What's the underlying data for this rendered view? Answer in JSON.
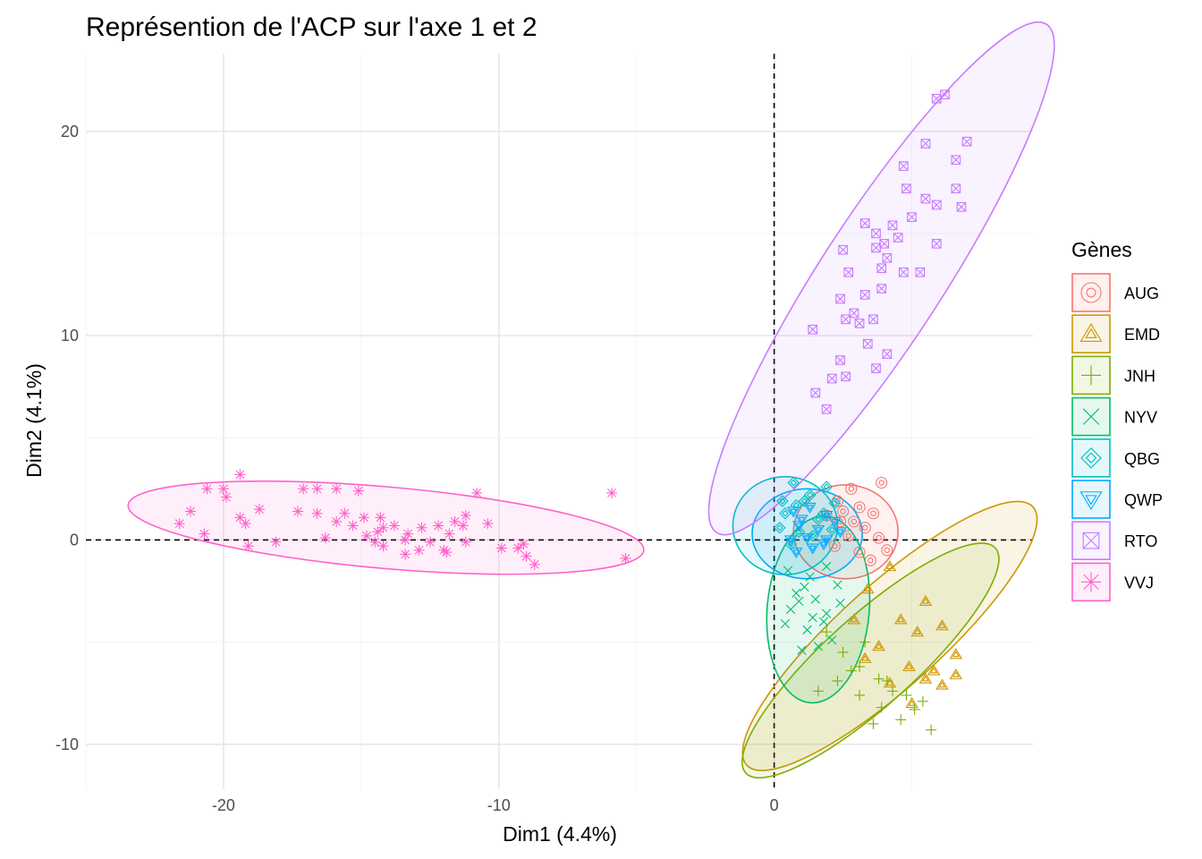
{
  "chart_data": {
    "type": "scatter",
    "title": "Représention de l'ACP sur l'axe 1 et 2",
    "xlabel": "Dim1 (4.4%)",
    "ylabel": "Dim2 (4.1%)",
    "xlim": [
      -25,
      9.4
    ],
    "ylim": [
      -12.2,
      23.8
    ],
    "x_ticks": [
      -20,
      -10,
      0
    ],
    "x_tick_labels": [
      "-20",
      "-10",
      "0"
    ],
    "y_ticks": [
      -10,
      0,
      10,
      20
    ],
    "y_tick_labels": [
      "-10",
      "0",
      "10",
      "20"
    ],
    "grid": true,
    "reference_lines": {
      "x": 0,
      "y": 0,
      "style": "dashed"
    },
    "legend": {
      "title": "Gènes",
      "placement": "right"
    },
    "series": [
      {
        "name": "AUG",
        "color": "#F8766D",
        "marker": "double-circle",
        "ellipse": {
          "cx": 2.6,
          "cy": 0.4,
          "rx": 1.9,
          "ry": 2.3,
          "angle": 0
        },
        "points": [
          [
            2.8,
            2.5
          ],
          [
            3.9,
            2.8
          ],
          [
            2.3,
            1.9
          ],
          [
            3.1,
            1.6
          ],
          [
            3.6,
            1.3
          ],
          [
            2.9,
            0.9
          ],
          [
            3.3,
            0.6
          ],
          [
            2.4,
            0.9
          ],
          [
            2.7,
            0.2
          ],
          [
            3.8,
            0.1
          ],
          [
            3.1,
            -0.6
          ],
          [
            2.2,
            -0.3
          ],
          [
            1.9,
            1.2
          ],
          [
            3.5,
            -1.0
          ],
          [
            2.5,
            1.4
          ],
          [
            4.1,
            -0.5
          ]
        ]
      },
      {
        "name": "EMD",
        "color": "#CD9600",
        "marker": "double-triangle",
        "ellipse": {
          "cx": 4.2,
          "cy": -4.7,
          "rx": 7.0,
          "ry": 2.5,
          "angle": -42
        },
        "points": [
          [
            4.2,
            -1.3
          ],
          [
            3.4,
            -2.4
          ],
          [
            5.5,
            -3.0
          ],
          [
            4.6,
            -3.9
          ],
          [
            5.2,
            -4.5
          ],
          [
            6.1,
            -4.2
          ],
          [
            6.6,
            -5.6
          ],
          [
            5.8,
            -6.4
          ],
          [
            3.8,
            -5.2
          ],
          [
            2.9,
            -3.9
          ],
          [
            4.9,
            -6.2
          ],
          [
            6.1,
            -7.1
          ],
          [
            5.0,
            -8.0
          ],
          [
            6.6,
            -6.6
          ],
          [
            3.3,
            -5.8
          ],
          [
            4.2,
            -7.0
          ],
          [
            5.5,
            -6.8
          ]
        ]
      },
      {
        "name": "JNH",
        "color": "#7CAE00",
        "marker": "plus",
        "ellipse": {
          "cx": 3.5,
          "cy": -5.9,
          "rx": 6.1,
          "ry": 2.2,
          "angle": -42
        },
        "points": [
          [
            1.9,
            -4.5
          ],
          [
            2.5,
            -5.5
          ],
          [
            3.1,
            -6.2
          ],
          [
            3.8,
            -6.8
          ],
          [
            4.3,
            -7.4
          ],
          [
            5.1,
            -8.3
          ],
          [
            5.7,
            -9.3
          ],
          [
            4.6,
            -8.8
          ],
          [
            3.6,
            -9.0
          ],
          [
            2.3,
            -6.9
          ],
          [
            1.6,
            -7.4
          ],
          [
            3.1,
            -7.6
          ],
          [
            4.1,
            -6.9
          ],
          [
            5.4,
            -7.9
          ],
          [
            3.3,
            -5.0
          ],
          [
            2.8,
            -6.4
          ],
          [
            4.8,
            -7.6
          ],
          [
            3.9,
            -8.2
          ]
        ]
      },
      {
        "name": "NYV",
        "color": "#00BE67",
        "marker": "cross",
        "ellipse": {
          "cx": 1.6,
          "cy": -3.4,
          "rx": 3.4,
          "ry": 2.5,
          "angle": -85
        },
        "points": [
          [
            0.5,
            -1.5
          ],
          [
            1.1,
            -2.3
          ],
          [
            1.5,
            -2.9
          ],
          [
            1.9,
            -3.6
          ],
          [
            1.2,
            -4.4
          ],
          [
            0.6,
            -3.4
          ],
          [
            1.6,
            -5.2
          ],
          [
            2.3,
            -2.2
          ],
          [
            0.9,
            -3.0
          ],
          [
            1.8,
            -4.0
          ],
          [
            1.3,
            -1.8
          ],
          [
            2.1,
            -4.9
          ],
          [
            0.8,
            -2.6
          ],
          [
            1.4,
            -3.8
          ],
          [
            0.4,
            -4.1
          ],
          [
            1.9,
            -1.3
          ],
          [
            1.0,
            -5.4
          ],
          [
            2.4,
            -3.1
          ]
        ]
      },
      {
        "name": "QBG",
        "color": "#00BFC4",
        "marker": "double-diamond",
        "ellipse": {
          "cx": 0.4,
          "cy": 0.7,
          "rx": 1.9,
          "ry": 2.4,
          "angle": 0
        },
        "points": [
          [
            0.7,
            2.8
          ],
          [
            1.1,
            1.9
          ],
          [
            0.4,
            1.3
          ],
          [
            1.6,
            1.0
          ],
          [
            0.9,
            0.4
          ],
          [
            1.4,
            0.2
          ],
          [
            0.2,
            0.6
          ],
          [
            0.6,
            -0.2
          ],
          [
            1.8,
            1.3
          ],
          [
            2.1,
            0.5
          ],
          [
            1.3,
            2.2
          ],
          [
            0.8,
            1.7
          ],
          [
            1.9,
            2.6
          ],
          [
            2.2,
            1.8
          ],
          [
            0.3,
            1.9
          ]
        ]
      },
      {
        "name": "QWP",
        "color": "#00A9FF",
        "marker": "double-triangle-down",
        "ellipse": {
          "cx": 1.2,
          "cy": 0.3,
          "rx": 2.0,
          "ry": 2.2,
          "angle": 0
        },
        "points": [
          [
            0.7,
            1.4
          ],
          [
            1.3,
            1.6
          ],
          [
            1.9,
            1.2
          ],
          [
            0.9,
            0.7
          ],
          [
            1.6,
            0.5
          ],
          [
            2.2,
            0.9
          ],
          [
            0.6,
            0.0
          ],
          [
            1.2,
            0.1
          ],
          [
            1.8,
            -0.2
          ],
          [
            0.8,
            -0.6
          ],
          [
            1.4,
            -0.4
          ],
          [
            2.4,
            0.4
          ],
          [
            1.0,
            1.0
          ],
          [
            1.9,
            0.0
          ]
        ]
      },
      {
        "name": "RTO",
        "color": "#C77CFF",
        "marker": "boxed-x",
        "ellipse": {
          "cx": 3.9,
          "cy": 12.8,
          "rx": 11.0,
          "ry": 3.0,
          "angle": -57
        },
        "points": [
          [
            6.2,
            21.8
          ],
          [
            5.9,
            21.6
          ],
          [
            5.5,
            19.4
          ],
          [
            7.0,
            19.5
          ],
          [
            6.6,
            18.6
          ],
          [
            4.7,
            18.3
          ],
          [
            4.8,
            17.2
          ],
          [
            6.6,
            17.2
          ],
          [
            5.5,
            16.7
          ],
          [
            5.9,
            16.4
          ],
          [
            6.8,
            16.3
          ],
          [
            5.0,
            15.8
          ],
          [
            3.3,
            15.5
          ],
          [
            4.3,
            15.4
          ],
          [
            3.7,
            15.0
          ],
          [
            4.0,
            14.5
          ],
          [
            4.5,
            14.8
          ],
          [
            5.9,
            14.5
          ],
          [
            2.5,
            14.2
          ],
          [
            3.7,
            14.3
          ],
          [
            4.1,
            13.8
          ],
          [
            3.9,
            13.3
          ],
          [
            2.7,
            13.1
          ],
          [
            4.7,
            13.1
          ],
          [
            5.3,
            13.1
          ],
          [
            3.3,
            12.0
          ],
          [
            2.4,
            11.8
          ],
          [
            2.6,
            10.8
          ],
          [
            3.9,
            12.3
          ],
          [
            2.9,
            11.1
          ],
          [
            3.1,
            10.6
          ],
          [
            3.6,
            10.8
          ],
          [
            1.4,
            10.3
          ],
          [
            3.4,
            9.6
          ],
          [
            4.1,
            9.1
          ],
          [
            3.7,
            8.4
          ],
          [
            2.4,
            8.8
          ],
          [
            2.6,
            8.0
          ],
          [
            2.1,
            7.9
          ],
          [
            1.5,
            7.2
          ],
          [
            1.9,
            6.4
          ]
        ]
      },
      {
        "name": "VVJ",
        "color": "#FF61CC",
        "marker": "asterisk",
        "ellipse": {
          "cx": -14.1,
          "cy": 0.6,
          "rx": 9.4,
          "ry": 2.0,
          "angle": 5
        },
        "points": [
          [
            -19.4,
            3.2
          ],
          [
            -20.6,
            2.5
          ],
          [
            -20.0,
            2.5
          ],
          [
            -19.9,
            2.1
          ],
          [
            -17.1,
            2.5
          ],
          [
            -16.6,
            2.5
          ],
          [
            -15.9,
            2.5
          ],
          [
            -15.1,
            2.4
          ],
          [
            -10.8,
            2.3
          ],
          [
            -5.9,
            2.3
          ],
          [
            -18.7,
            1.5
          ],
          [
            -17.3,
            1.4
          ],
          [
            -15.6,
            1.3
          ],
          [
            -14.9,
            1.1
          ],
          [
            -14.3,
            1.1
          ],
          [
            -11.2,
            1.2
          ],
          [
            -11.3,
            0.7
          ],
          [
            -10.4,
            0.8
          ],
          [
            -21.6,
            0.8
          ],
          [
            -21.2,
            1.4
          ],
          [
            -19.4,
            1.1
          ],
          [
            -19.2,
            0.8
          ],
          [
            -16.3,
            0.1
          ],
          [
            -16.6,
            1.3
          ],
          [
            -15.9,
            0.9
          ],
          [
            -15.3,
            0.7
          ],
          [
            -14.4,
            0.4
          ],
          [
            -14.2,
            0.6
          ],
          [
            -13.8,
            0.7
          ],
          [
            -13.3,
            0.3
          ],
          [
            -12.8,
            0.6
          ],
          [
            -12.2,
            0.7
          ],
          [
            -11.8,
            0.3
          ],
          [
            -11.6,
            0.9
          ],
          [
            -20.7,
            0.3
          ],
          [
            -19.1,
            -0.3
          ],
          [
            -18.1,
            -0.1
          ],
          [
            -14.8,
            0.2
          ],
          [
            -14.5,
            -0.1
          ],
          [
            -13.4,
            0.0
          ],
          [
            -12.9,
            -0.5
          ],
          [
            -12.5,
            -0.1
          ],
          [
            -12.0,
            -0.5
          ],
          [
            -11.2,
            -0.1
          ],
          [
            -9.9,
            -0.4
          ],
          [
            -9.3,
            -0.4
          ],
          [
            -9.1,
            -0.2
          ],
          [
            -8.7,
            -1.2
          ],
          [
            -9.0,
            -0.8
          ],
          [
            -5.4,
            -0.9
          ],
          [
            -13.4,
            -0.7
          ],
          [
            -14.2,
            -0.3
          ],
          [
            -11.9,
            -0.6
          ]
        ]
      }
    ]
  }
}
